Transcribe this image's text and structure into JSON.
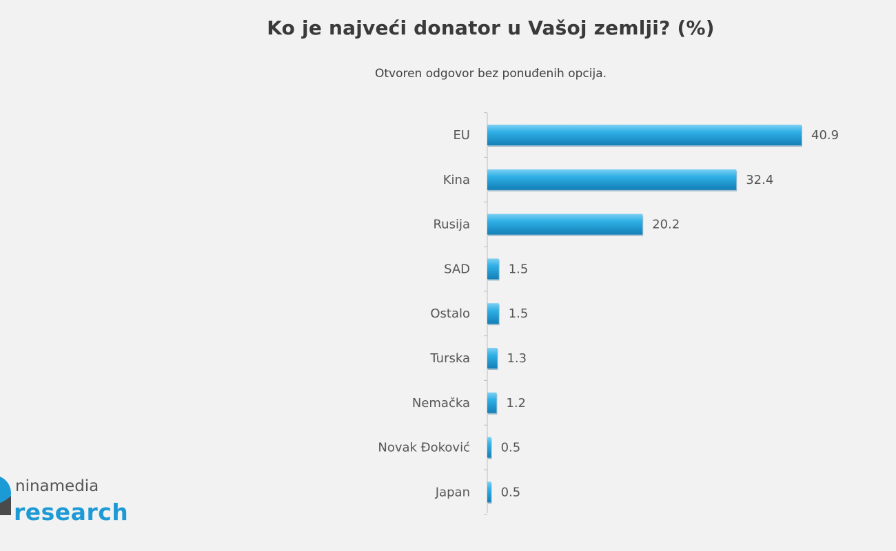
{
  "chart_data": {
    "type": "bar",
    "orientation": "horizontal",
    "title": "Ko je najveći donator u Vašoj zemlji? (%)",
    "subtitle": "Otvoren odgovor bez ponuđenih opcija.",
    "categories": [
      "EU",
      "Kina",
      "Rusija",
      "SAD",
      "Ostalo",
      "Turska",
      "Nemačka",
      "Novak Đoković",
      "Japan"
    ],
    "values": [
      40.9,
      32.4,
      20.2,
      1.5,
      1.5,
      1.3,
      1.2,
      0.5,
      0.5
    ],
    "value_labels": [
      "40.9",
      "32.4",
      "20.2",
      "1.5",
      "1.5",
      "1.3",
      "1.2",
      "0.5",
      "0.5"
    ],
    "xlim": [
      0,
      40.9
    ],
    "grid": false,
    "bar_color": "#1a9ad6"
  },
  "logo": {
    "line1": "ninamedia",
    "line2": "research"
  }
}
